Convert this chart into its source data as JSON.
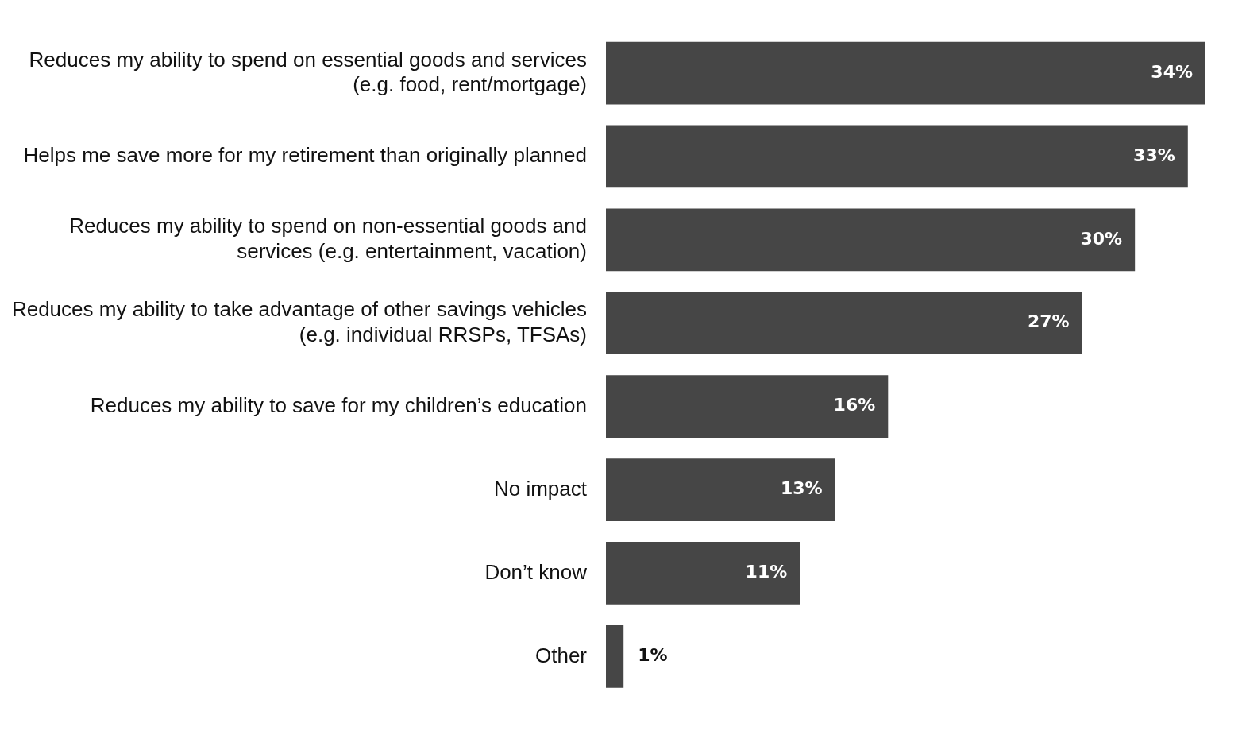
{
  "chart_data": {
    "type": "bar",
    "orientation": "horizontal",
    "categories": [
      "Reduces my ability to spend on essential goods and services (e.g. food, rent/mortgage)",
      "Helps me save more for my retirement than originally planned",
      "Reduces my ability to spend on non-essential goods and services (e.g. entertainment, vacation)",
      "Reduces my ability to take advantage of other savings vehicles (e.g. individual RRSPs, TFSAs)",
      "Reduces my ability to save for my children’s education",
      "No impact",
      "Don’t know",
      "Other"
    ],
    "values": [
      34,
      33,
      30,
      27,
      16,
      13,
      11,
      1
    ],
    "value_labels": [
      "34%",
      "33%",
      "30%",
      "27%",
      "16%",
      "13%",
      "11%",
      "1%"
    ],
    "color": "#464646"
  }
}
